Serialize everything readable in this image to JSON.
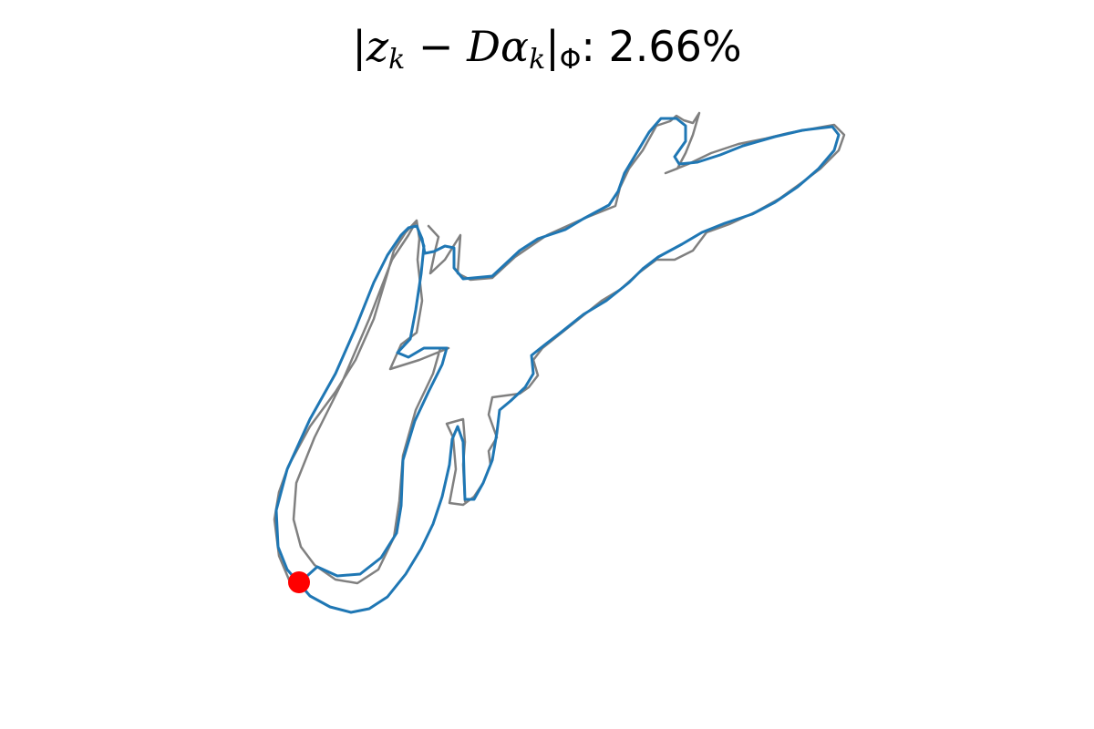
{
  "title": {
    "z": "z",
    "k1": "k",
    "minus": " − ",
    "D": "D",
    "alpha": "α",
    "k2": "k",
    "phi": "Φ",
    "value": ": 2.66%"
  },
  "colors": {
    "original": "#808080",
    "reconstruction": "#1f77b4",
    "start_marker": "#ff0000"
  }
}
